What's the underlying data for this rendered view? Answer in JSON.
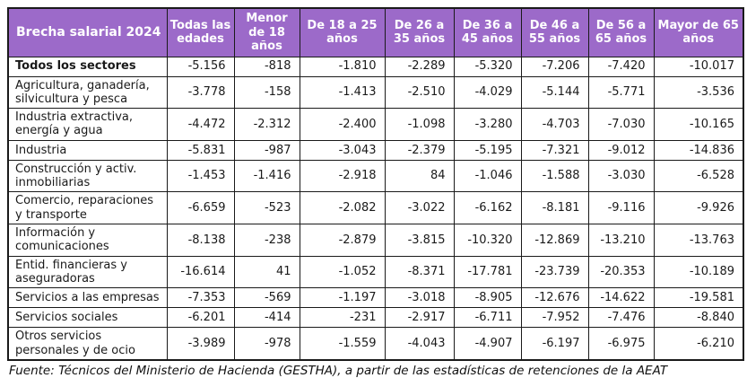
{
  "table": {
    "title": "Brecha salarial 2024",
    "columns": [
      "Todas las edades",
      "Menor de 18 años",
      "De 18 a 25 años",
      "De 26 a 35 años",
      "De 36 a 45 años",
      "De 46 a 55 años",
      "De 56 a 65 años",
      "Mayor de 65 años"
    ],
    "rows": [
      {
        "sector": "Todos los sectores",
        "bold": true,
        "values": [
          "-5.156",
          "-818",
          "-1.810",
          "-2.289",
          "-5.320",
          "-7.206",
          "-7.420",
          "-10.017"
        ]
      },
      {
        "sector": "Agricultura, ganadería, silvicultura y pesca",
        "bold": false,
        "values": [
          "-3.778",
          "-158",
          "-1.413",
          "-2.510",
          "-4.029",
          "-5.144",
          "-5.771",
          "-3.536"
        ]
      },
      {
        "sector": "Industria extractiva, energía y agua",
        "bold": false,
        "values": [
          "-4.472",
          "-2.312",
          "-2.400",
          "-1.098",
          "-3.280",
          "-4.703",
          "-7.030",
          "-10.165"
        ]
      },
      {
        "sector": "Industria",
        "bold": false,
        "values": [
          "-5.831",
          "-987",
          "-3.043",
          "-2.379",
          "-5.195",
          "-7.321",
          "-9.012",
          "-14.836"
        ]
      },
      {
        "sector": "Construcción y activ. inmobiliarias",
        "bold": false,
        "values": [
          "-1.453",
          "-1.416",
          "-2.918",
          "84",
          "-1.046",
          "-1.588",
          "-3.030",
          "-6.528"
        ]
      },
      {
        "sector": "Comercio, reparaciones y transporte",
        "bold": false,
        "values": [
          "-6.659",
          "-523",
          "-2.082",
          "-3.022",
          "-6.162",
          "-8.181",
          "-9.116",
          "-9.926"
        ]
      },
      {
        "sector": "Información y comunicaciones",
        "bold": false,
        "values": [
          "-8.138",
          "-238",
          "-2.879",
          "-3.815",
          "-10.320",
          "-12.869",
          "-13.210",
          "-13.763"
        ]
      },
      {
        "sector": "Entid. financieras y aseguradoras",
        "bold": false,
        "values": [
          "-16.614",
          "41",
          "-1.052",
          "-8.371",
          "-17.781",
          "-23.739",
          "-20.353",
          "-10.189"
        ]
      },
      {
        "sector": "Servicios a las empresas",
        "bold": false,
        "values": [
          "-7.353",
          "-569",
          "-1.197",
          "-3.018",
          "-8.905",
          "-12.676",
          "-14.622",
          "-19.581"
        ]
      },
      {
        "sector": "Servicios sociales",
        "bold": false,
        "values": [
          "-6.201",
          "-414",
          "-231",
          "-2.917",
          "-6.711",
          "-7.952",
          "-7.476",
          "-8.840"
        ]
      },
      {
        "sector": "Otros servicios personales y de ocio",
        "bold": false,
        "values": [
          "-3.989",
          "-978",
          "-1.559",
          "-4.043",
          "-4.907",
          "-6.197",
          "-6.975",
          "-6.210"
        ]
      }
    ],
    "footer": "Fuente: Técnicos del Ministerio de Hacienda (GESTHA), a partir de las estadísticas de retenciones de la AEAT"
  },
  "colors": {
    "header_bg": "#9c6ac9",
    "header_text": "#ffffff",
    "border": "#1a1a1a"
  },
  "chart_data": {
    "type": "table",
    "title": "Brecha salarial 2024",
    "columns": [
      "Todas las edades",
      "Menor de 18 años",
      "De 18 a 25 años",
      "De 26 a 35 años",
      "De 36 a 45 años",
      "De 46 a 55 años",
      "De 56 a 65 años",
      "Mayor de 65 años"
    ],
    "rows": [
      {
        "sector": "Todos los sectores",
        "values": [
          -5156,
          -818,
          -1810,
          -2289,
          -5320,
          -7206,
          -7420,
          -10017
        ]
      },
      {
        "sector": "Agricultura, ganadería, silvicultura y pesca",
        "values": [
          -3778,
          -158,
          -1413,
          -2510,
          -4029,
          -5144,
          -5771,
          -3536
        ]
      },
      {
        "sector": "Industria extractiva, energía y agua",
        "values": [
          -4472,
          -2312,
          -2400,
          -1098,
          -3280,
          -4703,
          -7030,
          -10165
        ]
      },
      {
        "sector": "Industria",
        "values": [
          -5831,
          -987,
          -3043,
          -2379,
          -5195,
          -7321,
          -9012,
          -14836
        ]
      },
      {
        "sector": "Construcción y activ. inmobiliarias",
        "values": [
          -1453,
          -1416,
          -2918,
          84,
          -1046,
          -1588,
          -3030,
          -6528
        ]
      },
      {
        "sector": "Comercio, reparaciones y transporte",
        "values": [
          -6659,
          -523,
          -2082,
          -3022,
          -6162,
          -8181,
          -9116,
          -9926
        ]
      },
      {
        "sector": "Información y comunicaciones",
        "values": [
          -8138,
          -238,
          -2879,
          -3815,
          -10320,
          -12869,
          -13210,
          -13763
        ]
      },
      {
        "sector": "Entid. financieras y aseguradoras",
        "values": [
          -16614,
          41,
          -1052,
          -8371,
          -17781,
          -23739,
          -20353,
          -10189
        ]
      },
      {
        "sector": "Servicios a las empresas",
        "values": [
          -7353,
          -569,
          -1197,
          -3018,
          -8905,
          -12676,
          -14622,
          -19581
        ]
      },
      {
        "sector": "Servicios sociales",
        "values": [
          -6201,
          -414,
          -231,
          -2917,
          -6711,
          -7952,
          -7476,
          -8840
        ]
      },
      {
        "sector": "Otros servicios personales y de ocio",
        "values": [
          -3989,
          -978,
          -1559,
          -4043,
          -4907,
          -6197,
          -6975,
          -6210
        ]
      }
    ],
    "source_note": "Fuente: Técnicos del Ministerio de Hacienda (GESTHA), a partir de las estadísticas de retenciones de la AEAT"
  }
}
